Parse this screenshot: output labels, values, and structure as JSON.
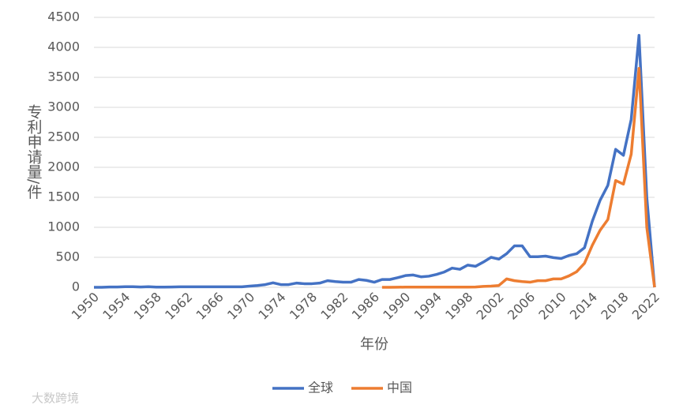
{
  "chart_data": {
    "type": "line",
    "x": [
      1950,
      1951,
      1952,
      1953,
      1954,
      1955,
      1956,
      1957,
      1958,
      1959,
      1960,
      1961,
      1962,
      1963,
      1964,
      1965,
      1966,
      1967,
      1968,
      1969,
      1970,
      1971,
      1972,
      1973,
      1974,
      1975,
      1976,
      1977,
      1978,
      1979,
      1980,
      1981,
      1982,
      1983,
      1984,
      1985,
      1986,
      1987,
      1988,
      1989,
      1990,
      1991,
      1992,
      1993,
      1994,
      1995,
      1996,
      1997,
      1998,
      1999,
      2000,
      2001,
      2002,
      2003,
      2004,
      2005,
      2006,
      2007,
      2008,
      2009,
      2010,
      2011,
      2012,
      2013,
      2014,
      2015,
      2016,
      2017,
      2018,
      2019,
      2020,
      2021,
      2022
    ],
    "series": [
      {
        "name": "全球",
        "color": "#4472c4",
        "values": [
          0,
          0,
          5,
          5,
          10,
          10,
          5,
          10,
          3,
          3,
          5,
          8,
          8,
          8,
          8,
          8,
          8,
          8,
          8,
          8,
          20,
          30,
          45,
          75,
          45,
          45,
          70,
          60,
          60,
          70,
          110,
          95,
          85,
          85,
          130,
          115,
          85,
          130,
          130,
          160,
          195,
          205,
          175,
          185,
          215,
          255,
          320,
          300,
          370,
          350,
          420,
          500,
          470,
          560,
          690,
          690,
          510,
          510,
          520,
          495,
          480,
          530,
          560,
          660,
          1100,
          1450,
          1700,
          2300,
          2200,
          2800,
          4200,
          1500,
          0
        ]
      },
      {
        "name": "中国",
        "color": "#ed7d31",
        "values": [
          null,
          null,
          null,
          null,
          null,
          null,
          null,
          null,
          null,
          null,
          null,
          null,
          null,
          null,
          null,
          null,
          null,
          null,
          null,
          null,
          null,
          null,
          null,
          null,
          null,
          null,
          null,
          null,
          null,
          null,
          null,
          null,
          null,
          null,
          null,
          null,
          null,
          0,
          0,
          2,
          3,
          3,
          3,
          3,
          3,
          3,
          3,
          3,
          3,
          5,
          15,
          20,
          30,
          140,
          110,
          95,
          85,
          110,
          110,
          140,
          140,
          190,
          260,
          400,
          700,
          950,
          1130,
          1780,
          1720,
          2220,
          3650,
          1000,
          0
        ]
      }
    ],
    "xlim": [
      1950,
      2022
    ],
    "xticks": [
      1950,
      1954,
      1958,
      1962,
      1966,
      1970,
      1974,
      1978,
      1982,
      1986,
      1990,
      1994,
      1998,
      2002,
      2006,
      2010,
      2014,
      2018,
      2022
    ],
    "ylim": [
      0,
      4500
    ],
    "yticks": [
      0,
      500,
      1000,
      1500,
      2000,
      2500,
      3000,
      3500,
      4000,
      4500
    ],
    "xlabel": "年份",
    "ylabel": "专利申请量/件",
    "grid": true,
    "legend": "bottom",
    "watermark": "大数跨境"
  }
}
